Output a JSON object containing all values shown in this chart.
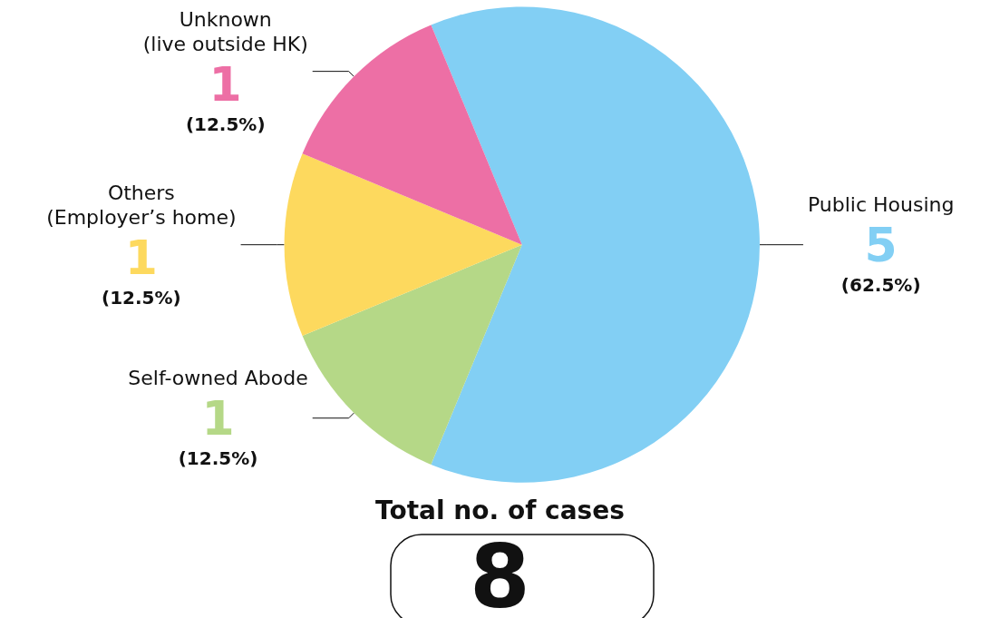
{
  "chart_data": {
    "type": "pie",
    "categories": [
      "Public Housing",
      "Self-owned Abode",
      "Others\n(Employer’s home)",
      "Unknown\n(live outside HK)"
    ],
    "values": [
      5,
      1,
      1,
      1
    ],
    "colors": [
      "#82cff4",
      "#b5d887",
      "#fdd95e",
      "#ed6fa5"
    ],
    "value_labels": [
      "5\n(62.5%)",
      "1\n(12.5%)",
      "1\n(12.5%)",
      "1\n(12.5%)"
    ],
    "annotations": [
      "Total no. of cases",
      "8"
    ],
    "legend": false
  }
}
